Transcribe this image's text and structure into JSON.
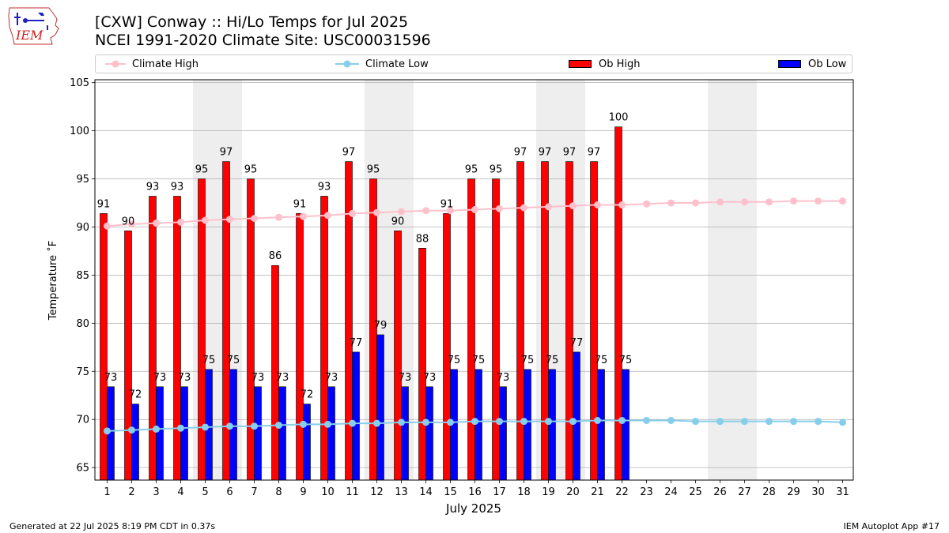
{
  "header": {
    "logo_text": "IEM",
    "title_line1": "[CXW] Conway :: Hi/Lo Temps for Jul 2025",
    "title_line2": "NCEI 1991-2020 Climate Site: USC00031596"
  },
  "legend": {
    "climate_high": "Climate High",
    "climate_low": "Climate Low",
    "ob_high": "Ob High",
    "ob_low": "Ob Low"
  },
  "footer": {
    "generated": "Generated at 22 Jul 2025 8:19 PM CDT in 0.37s",
    "app": "IEM Autoplot App #17"
  },
  "chart_data": {
    "type": "bar",
    "xlabel": "July 2025",
    "ylabel": "Temperature ˚F",
    "ylim": [
      63.7,
      105.3
    ],
    "yticks": [
      65,
      70,
      75,
      80,
      85,
      90,
      95,
      100,
      105
    ],
    "grid": "horizontal",
    "legend_position": "top",
    "weekend_shading_days": [
      5,
      6,
      12,
      13,
      19,
      20,
      26,
      27
    ],
    "days": [
      1,
      2,
      3,
      4,
      5,
      6,
      7,
      8,
      9,
      10,
      11,
      12,
      13,
      14,
      15,
      16,
      17,
      18,
      19,
      20,
      21,
      22,
      23,
      24,
      25,
      26,
      27,
      28,
      29,
      30,
      31
    ],
    "ob_high": [
      91.4,
      89.6,
      93.2,
      93.2,
      95.0,
      96.8,
      95.0,
      86.0,
      91.4,
      93.2,
      96.8,
      95.0,
      89.6,
      87.8,
      91.4,
      95.0,
      95.0,
      96.8,
      96.8,
      96.8,
      96.8,
      100.4
    ],
    "ob_high_labels": [
      "91",
      "90",
      "93",
      "93",
      "95",
      "97",
      "95",
      "86",
      "91",
      "93",
      "97",
      "95",
      "90",
      "88",
      "91",
      "95",
      "95",
      "97",
      "97",
      "97",
      "97",
      "100"
    ],
    "ob_low": [
      73.4,
      71.6,
      73.4,
      73.4,
      75.2,
      75.2,
      73.4,
      73.4,
      71.6,
      73.4,
      77.0,
      78.8,
      73.4,
      73.4,
      75.2,
      75.2,
      73.4,
      75.2,
      75.2,
      77.0,
      75.2,
      75.2
    ],
    "ob_low_labels": [
      "73",
      "72",
      "73",
      "73",
      "75",
      "75",
      "73",
      "73",
      "72",
      "73",
      "77",
      "79",
      "73",
      "73",
      "75",
      "75",
      "73",
      "75",
      "75",
      "77",
      "75",
      "75"
    ],
    "climate_high": [
      90.1,
      90.3,
      90.4,
      90.5,
      90.7,
      90.8,
      90.9,
      91.0,
      91.1,
      91.2,
      91.4,
      91.5,
      91.6,
      91.7,
      91.7,
      91.8,
      91.9,
      92.0,
      92.1,
      92.2,
      92.3,
      92.3,
      92.4,
      92.5,
      92.5,
      92.6,
      92.6,
      92.6,
      92.7,
      92.7,
      92.7
    ],
    "climate_low": [
      68.8,
      68.9,
      69.0,
      69.1,
      69.2,
      69.3,
      69.3,
      69.4,
      69.5,
      69.5,
      69.6,
      69.6,
      69.7,
      69.7,
      69.7,
      69.8,
      69.8,
      69.8,
      69.8,
      69.8,
      69.9,
      69.9,
      69.9,
      69.9,
      69.8,
      69.8,
      69.8,
      69.8,
      69.8,
      69.8,
      69.7
    ],
    "colors": {
      "ob_high": "#ff0000",
      "ob_low": "#0000ff",
      "climate_high": "#ffc0cb",
      "climate_low": "#87ceeb",
      "weekend": "#eeeeee",
      "grid": "#b0b0b0"
    }
  }
}
